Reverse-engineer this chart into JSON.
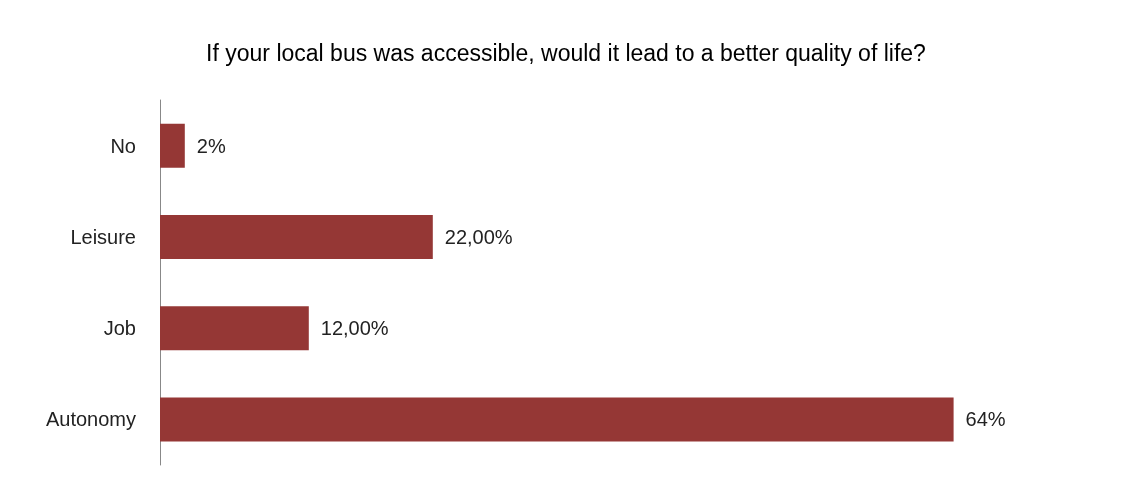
{
  "chart_data": {
    "type": "bar",
    "orientation": "horizontal",
    "title": "If your local bus was accessible, would it lead to a better quality of life?",
    "categories": [
      "No",
      "Leisure",
      "Job",
      "Autonomy"
    ],
    "values": [
      2,
      22,
      12,
      64
    ],
    "value_labels": [
      "2%",
      "22,00%",
      "12,00%",
      "64%"
    ],
    "color": "#953735"
  }
}
